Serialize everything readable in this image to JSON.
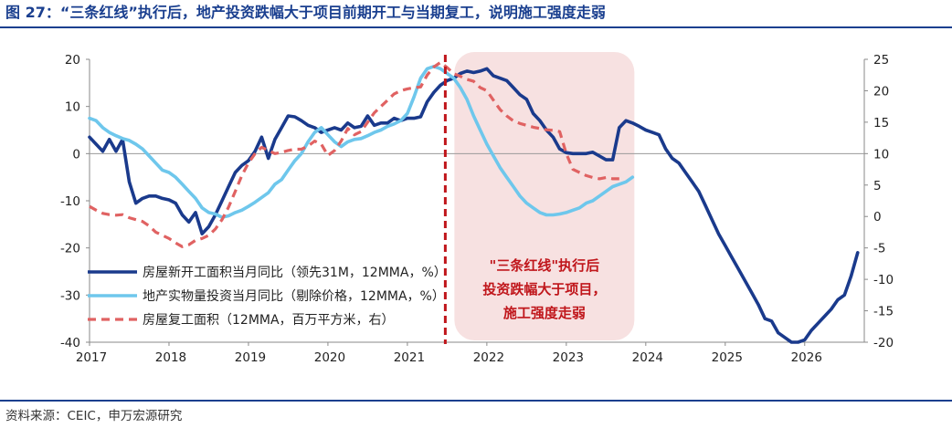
{
  "figure": {
    "title": "图 27：“三条红线”执行后，地产投资跌幅大于项目前期开工与当期复工，说明施工强度走弱",
    "source": "资料来源：CEIC，申万宏源研究"
  },
  "annotation": {
    "lines": [
      "\"三条红线\"执行后",
      "投资跌幅大于项目，",
      "施工强度走弱"
    ]
  },
  "colors": {
    "accent": "#1a3f8f",
    "highlight_fill": "#f7e1e1",
    "annotation_text": "#c0161b",
    "divider": "#c0161b"
  },
  "chart_data": {
    "type": "line",
    "x_ticks": [
      "2017",
      "2018",
      "2019",
      "2020",
      "2021",
      "2022",
      "2023",
      "2024",
      "2025",
      "2026"
    ],
    "x_range": [
      "2017-01",
      "2026-06"
    ],
    "y_left": {
      "range": [
        -40,
        20
      ],
      "ticks": [
        20,
        10,
        0,
        -10,
        -20,
        -30,
        -40
      ]
    },
    "y_right": {
      "range": [
        -20,
        25
      ],
      "ticks": [
        25,
        20,
        15,
        10,
        5,
        0,
        -5,
        -10,
        -15,
        -20
      ]
    },
    "vertical_marker": "2021-07",
    "highlight_range": [
      "2021-07",
      "2023-11"
    ],
    "legend_position": "lower-left",
    "series": [
      {
        "name": "房屋新开工面积当月同比（领先31M，12MMA，%）",
        "axis": "left",
        "color": "#1a3a8c",
        "style": "solid",
        "points": [
          [
            "2017-01",
            3.5
          ],
          [
            "2017-02",
            2
          ],
          [
            "2017-03",
            0.5
          ],
          [
            "2017-04",
            3
          ],
          [
            "2017-05",
            0.5
          ],
          [
            "2017-06",
            3
          ],
          [
            "2017-07",
            -6
          ],
          [
            "2017-08",
            -10.5
          ],
          [
            "2017-09",
            -9.5
          ],
          [
            "2017-10",
            -9
          ],
          [
            "2017-11",
            -9
          ],
          [
            "2017-12",
            -9.5
          ],
          [
            "2018-01",
            -9.8
          ],
          [
            "2018-02",
            -10.5
          ],
          [
            "2018-03",
            -13
          ],
          [
            "2018-04",
            -14.5
          ],
          [
            "2018-05",
            -12.5
          ],
          [
            "2018-06",
            -17
          ],
          [
            "2018-07",
            -15.5
          ],
          [
            "2018-08",
            -13
          ],
          [
            "2018-09",
            -10
          ],
          [
            "2018-10",
            -7
          ],
          [
            "2018-11",
            -4
          ],
          [
            "2018-12",
            -2.5
          ],
          [
            "2019-01",
            -1.5
          ],
          [
            "2019-02",
            0.5
          ],
          [
            "2019-03",
            3.5
          ],
          [
            "2019-04",
            -1
          ],
          [
            "2019-05",
            3
          ],
          [
            "2019-06",
            5.5
          ],
          [
            "2019-07",
            8
          ],
          [
            "2019-08",
            7.8
          ],
          [
            "2019-09",
            7
          ],
          [
            "2019-10",
            6
          ],
          [
            "2019-11",
            5.5
          ],
          [
            "2019-12",
            4.5
          ],
          [
            "2020-01",
            5
          ],
          [
            "2020-02",
            5.5
          ],
          [
            "2020-03",
            5
          ],
          [
            "2020-04",
            6.5
          ],
          [
            "2020-05",
            5.5
          ],
          [
            "2020-06",
            5.8
          ],
          [
            "2020-07",
            8
          ],
          [
            "2020-08",
            6
          ],
          [
            "2020-09",
            6.5
          ],
          [
            "2020-10",
            6.5
          ],
          [
            "2020-11",
            7.5
          ],
          [
            "2020-12",
            7
          ],
          [
            "2021-01",
            7.5
          ],
          [
            "2021-02",
            7.5
          ],
          [
            "2021-03",
            7.8
          ],
          [
            "2021-04",
            11
          ],
          [
            "2021-05",
            13
          ],
          [
            "2021-06",
            14.5
          ],
          [
            "2021-07",
            15.5
          ],
          [
            "2021-08",
            16
          ],
          [
            "2021-09",
            17
          ],
          [
            "2021-10",
            17.5
          ],
          [
            "2021-11",
            17.2
          ],
          [
            "2021-12",
            17.5
          ],
          [
            "2022-01",
            18
          ],
          [
            "2022-02",
            16.5
          ],
          [
            "2022-03",
            16
          ],
          [
            "2022-04",
            15.5
          ],
          [
            "2022-05",
            14
          ],
          [
            "2022-06",
            12.5
          ],
          [
            "2022-07",
            11.5
          ],
          [
            "2022-08",
            8.5
          ],
          [
            "2022-09",
            7
          ],
          [
            "2022-10",
            5
          ],
          [
            "2022-11",
            3.5
          ],
          [
            "2022-12",
            1
          ],
          [
            "2023-01",
            0.2
          ],
          [
            "2023-02",
            0
          ],
          [
            "2023-03",
            0
          ],
          [
            "2023-04",
            0
          ],
          [
            "2023-05",
            0.3
          ],
          [
            "2023-06",
            -0.5
          ],
          [
            "2023-07",
            -1.3
          ],
          [
            "2023-08",
            -1.3
          ],
          [
            "2023-09",
            5.5
          ],
          [
            "2023-10",
            7
          ],
          [
            "2023-11",
            6.5
          ],
          [
            "2023-12",
            5.8
          ],
          [
            "2024-01",
            5
          ],
          [
            "2024-02",
            4.5
          ],
          [
            "2024-03",
            4
          ],
          [
            "2024-04",
            1
          ],
          [
            "2024-05",
            -1
          ],
          [
            "2024-06",
            -2
          ],
          [
            "2024-07",
            -4
          ],
          [
            "2024-08",
            -6
          ],
          [
            "2024-09",
            -8
          ],
          [
            "2024-10",
            -11
          ],
          [
            "2024-11",
            -14
          ],
          [
            "2024-12",
            -17
          ],
          [
            "2025-01",
            -19.5
          ],
          [
            "2025-02",
            -22
          ],
          [
            "2025-03",
            -24.5
          ],
          [
            "2025-04",
            -27
          ],
          [
            "2025-05",
            -29.5
          ],
          [
            "2025-06",
            -32
          ],
          [
            "2025-07",
            -35
          ],
          [
            "2025-08",
            -35.5
          ],
          [
            "2025-09",
            -38
          ],
          [
            "2025-10",
            -39
          ],
          [
            "2025-11",
            -40
          ],
          [
            "2025-12",
            -40
          ],
          [
            "2026-01",
            -39.5
          ],
          [
            "2026-02",
            -37.5
          ],
          [
            "2026-03",
            -36
          ],
          [
            "2026-04",
            -34.5
          ],
          [
            "2026-05",
            -33
          ],
          [
            "2026-06",
            -31
          ],
          [
            "2026-07",
            -30
          ],
          [
            "2026-08",
            -26
          ],
          [
            "2026-09",
            -21
          ]
        ]
      },
      {
        "name": "地产实物量投资当月同比（剔除价格，12MMA，%）",
        "axis": "left",
        "color": "#6ec7ec",
        "style": "solid",
        "points": [
          [
            "2017-01",
            7.5
          ],
          [
            "2017-02",
            7
          ],
          [
            "2017-03",
            5.5
          ],
          [
            "2017-04",
            4.5
          ],
          [
            "2017-05",
            3.8
          ],
          [
            "2017-06",
            3.2
          ],
          [
            "2017-07",
            2.8
          ],
          [
            "2017-08",
            2
          ],
          [
            "2017-09",
            1
          ],
          [
            "2017-10",
            -0.5
          ],
          [
            "2017-11",
            -2
          ],
          [
            "2017-12",
            -3.5
          ],
          [
            "2018-01",
            -4
          ],
          [
            "2018-02",
            -5
          ],
          [
            "2018-03",
            -6.5
          ],
          [
            "2018-04",
            -8
          ],
          [
            "2018-05",
            -9.5
          ],
          [
            "2018-06",
            -11.5
          ],
          [
            "2018-07",
            -12.5
          ],
          [
            "2018-08",
            -12.8
          ],
          [
            "2018-09",
            -13.5
          ],
          [
            "2018-10",
            -13.2
          ],
          [
            "2018-11",
            -12.5
          ],
          [
            "2018-12",
            -12
          ],
          [
            "2019-01",
            -11.2
          ],
          [
            "2019-02",
            -10.3
          ],
          [
            "2019-03",
            -9.3
          ],
          [
            "2019-04",
            -8.3
          ],
          [
            "2019-05",
            -6.5
          ],
          [
            "2019-06",
            -5.5
          ],
          [
            "2019-07",
            -3.5
          ],
          [
            "2019-08",
            -1.5
          ],
          [
            "2019-09",
            0
          ],
          [
            "2019-10",
            2.5
          ],
          [
            "2019-11",
            4.5
          ],
          [
            "2019-12",
            5.5
          ],
          [
            "2020-01",
            4
          ],
          [
            "2020-02",
            2.5
          ],
          [
            "2020-03",
            1.5
          ],
          [
            "2020-04",
            2.5
          ],
          [
            "2020-05",
            3
          ],
          [
            "2020-06",
            3.2
          ],
          [
            "2020-07",
            3.8
          ],
          [
            "2020-08",
            4.5
          ],
          [
            "2020-09",
            5
          ],
          [
            "2020-10",
            5.8
          ],
          [
            "2020-11",
            6.3
          ],
          [
            "2020-12",
            7
          ],
          [
            "2021-01",
            8.5
          ],
          [
            "2021-02",
            12
          ],
          [
            "2021-03",
            16
          ],
          [
            "2021-04",
            18
          ],
          [
            "2021-05",
            18.5
          ],
          [
            "2021-06",
            18
          ],
          [
            "2021-07",
            17
          ],
          [
            "2021-08",
            16
          ],
          [
            "2021-09",
            14
          ],
          [
            "2021-10",
            11.5
          ],
          [
            "2021-11",
            8
          ],
          [
            "2021-12",
            5
          ],
          [
            "2022-01",
            2
          ],
          [
            "2022-02",
            -0.5
          ],
          [
            "2022-03",
            -3
          ],
          [
            "2022-04",
            -5
          ],
          [
            "2022-05",
            -7
          ],
          [
            "2022-06",
            -9
          ],
          [
            "2022-07",
            -10.5
          ],
          [
            "2022-08",
            -11.5
          ],
          [
            "2022-09",
            -12.5
          ],
          [
            "2022-10",
            -13
          ],
          [
            "2022-11",
            -13
          ],
          [
            "2022-12",
            -12.8
          ],
          [
            "2023-01",
            -12.5
          ],
          [
            "2023-02",
            -12
          ],
          [
            "2023-03",
            -11.5
          ],
          [
            "2023-04",
            -10.5
          ],
          [
            "2023-05",
            -10
          ],
          [
            "2023-06",
            -9
          ],
          [
            "2023-07",
            -8
          ],
          [
            "2023-08",
            -7
          ],
          [
            "2023-09",
            -6.5
          ],
          [
            "2023-10",
            -6
          ],
          [
            "2023-11",
            -5
          ]
        ]
      },
      {
        "name": "房屋复工面积（12MMA，百万平方米，右）",
        "axis": "right",
        "color": "#e06262",
        "style": "dashed",
        "points": [
          [
            "2017-01",
            1.6
          ],
          [
            "2017-02",
            1
          ],
          [
            "2017-03",
            0.5
          ],
          [
            "2017-04",
            0.3
          ],
          [
            "2017-05",
            0.2
          ],
          [
            "2017-06",
            0.3
          ],
          [
            "2017-07",
            -0.2
          ],
          [
            "2017-08",
            -0.5
          ],
          [
            "2017-09",
            -0.8
          ],
          [
            "2017-10",
            -1.5
          ],
          [
            "2017-11",
            -2.5
          ],
          [
            "2017-12",
            -3
          ],
          [
            "2018-01",
            -3.5
          ],
          [
            "2018-02",
            -4.2
          ],
          [
            "2018-03",
            -4.8
          ],
          [
            "2018-04",
            -4.5
          ],
          [
            "2018-05",
            -3.8
          ],
          [
            "2018-06",
            -3.5
          ],
          [
            "2018-07",
            -3
          ],
          [
            "2018-08",
            -2
          ],
          [
            "2018-09",
            -0.5
          ],
          [
            "2018-10",
            1.5
          ],
          [
            "2018-11",
            4
          ],
          [
            "2018-12",
            6.5
          ],
          [
            "2019-01",
            8.5
          ],
          [
            "2019-02",
            10
          ],
          [
            "2019-03",
            11
          ],
          [
            "2019-04",
            10.5
          ],
          [
            "2019-05",
            10
          ],
          [
            "2019-06",
            10.2
          ],
          [
            "2019-07",
            10.5
          ],
          [
            "2019-08",
            10.7
          ],
          [
            "2019-09",
            10.7
          ],
          [
            "2019-10",
            11.2
          ],
          [
            "2019-11",
            12
          ],
          [
            "2019-12",
            11.5
          ],
          [
            "2020-01",
            9.7
          ],
          [
            "2020-02",
            10.5
          ],
          [
            "2020-03",
            12
          ],
          [
            "2020-04",
            14
          ],
          [
            "2020-05",
            13
          ],
          [
            "2020-06",
            13.5
          ],
          [
            "2020-07",
            15
          ],
          [
            "2020-08",
            16.5
          ],
          [
            "2020-09",
            17.5
          ],
          [
            "2020-10",
            18.5
          ],
          [
            "2020-11",
            19.5
          ],
          [
            "2020-12",
            20
          ],
          [
            "2021-01",
            20.3
          ],
          [
            "2021-02",
            20.5
          ],
          [
            "2021-03",
            20.6
          ],
          [
            "2021-04",
            22.5
          ],
          [
            "2021-05",
            23.8
          ],
          [
            "2021-06",
            24.5
          ],
          [
            "2021-07",
            23.7
          ],
          [
            "2021-08",
            22.7
          ],
          [
            "2021-09",
            22.3
          ],
          [
            "2021-10",
            21.8
          ],
          [
            "2021-11",
            21.5
          ],
          [
            "2021-12",
            20.5
          ],
          [
            "2022-01",
            20
          ],
          [
            "2022-02",
            18.5
          ],
          [
            "2022-03",
            17
          ],
          [
            "2022-04",
            16
          ],
          [
            "2022-05",
            15.2
          ],
          [
            "2022-06",
            14.8
          ],
          [
            "2022-07",
            14.5
          ],
          [
            "2022-08",
            14.2
          ],
          [
            "2022-09",
            14
          ],
          [
            "2022-10",
            13.8
          ],
          [
            "2022-11",
            13.7
          ],
          [
            "2022-12",
            13.5
          ],
          [
            "2023-01",
            10
          ],
          [
            "2023-02",
            7.5
          ],
          [
            "2023-03",
            7
          ],
          [
            "2023-04",
            6.5
          ],
          [
            "2023-05",
            6.2
          ],
          [
            "2023-06",
            6
          ],
          [
            "2023-07",
            6.2
          ],
          [
            "2023-08",
            6
          ],
          [
            "2023-09",
            6
          ]
        ]
      }
    ]
  }
}
